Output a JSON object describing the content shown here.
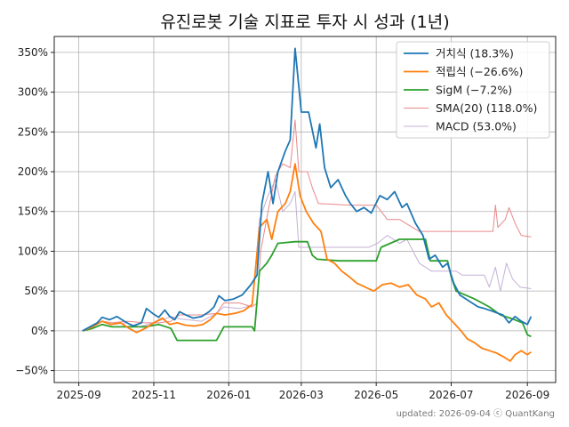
{
  "chart_data": {
    "type": "line",
    "title": "유진로봇 기술 지표로 투자 시 성과 (1년)",
    "xlabel": "",
    "ylabel": "",
    "x_ticks": [
      "2025-09",
      "2025-11",
      "2026-01",
      "2026-03",
      "2026-05",
      "2026-07",
      "2026-09"
    ],
    "y_ticks": [
      "−50%",
      "0%",
      "50%",
      "100%",
      "150%",
      "200%",
      "250%",
      "300%",
      "350%"
    ],
    "x_range": [
      "2025-08-12",
      "2026-09-24"
    ],
    "ylim": [
      -65,
      370
    ],
    "grid": true,
    "legend_position": "top-right",
    "footer": "updated: 2026-09-04 ⓒ QuantKang",
    "series": [
      {
        "name": "거치식 (18.3%)",
        "color": "#1f77b4",
        "points": [
          [
            "2025-09-04",
            0
          ],
          [
            "2025-09-10",
            5
          ],
          [
            "2025-09-16",
            10
          ],
          [
            "2025-09-20",
            17
          ],
          [
            "2025-09-26",
            14
          ],
          [
            "2025-10-02",
            18
          ],
          [
            "2025-10-08",
            12
          ],
          [
            "2025-10-15",
            6
          ],
          [
            "2025-10-22",
            10
          ],
          [
            "2025-10-26",
            28
          ],
          [
            "2025-10-31",
            22
          ],
          [
            "2025-11-05",
            17
          ],
          [
            "2025-11-10",
            26
          ],
          [
            "2025-11-14",
            18
          ],
          [
            "2025-11-18",
            14
          ],
          [
            "2025-11-22",
            24
          ],
          [
            "2025-11-27",
            20
          ],
          [
            "2025-12-03",
            16
          ],
          [
            "2025-12-10",
            18
          ],
          [
            "2025-12-16",
            24
          ],
          [
            "2025-12-20",
            30
          ],
          [
            "2025-12-24",
            44
          ],
          [
            "2025-12-29",
            38
          ],
          [
            "2026-01-05",
            40
          ],
          [
            "2026-01-12",
            45
          ],
          [
            "2026-01-19",
            58
          ],
          [
            "2026-01-24",
            70
          ],
          [
            "2026-01-28",
            160
          ],
          [
            "2026-02-02",
            200
          ],
          [
            "2026-02-06",
            160
          ],
          [
            "2026-02-10",
            200
          ],
          [
            "2026-02-16",
            226
          ],
          [
            "2026-02-20",
            240
          ],
          [
            "2026-02-24",
            355
          ],
          [
            "2026-03-01",
            275
          ],
          [
            "2026-03-07",
            275
          ],
          [
            "2026-03-13",
            230
          ],
          [
            "2026-03-16",
            260
          ],
          [
            "2026-03-20",
            205
          ],
          [
            "2026-03-25",
            180
          ],
          [
            "2026-03-31",
            190
          ],
          [
            "2026-04-06",
            170
          ],
          [
            "2026-04-10",
            160
          ],
          [
            "2026-04-15",
            150
          ],
          [
            "2026-04-21",
            155
          ],
          [
            "2026-04-27",
            148
          ],
          [
            "2026-05-04",
            170
          ],
          [
            "2026-05-10",
            165
          ],
          [
            "2026-05-16",
            175
          ],
          [
            "2026-05-22",
            155
          ],
          [
            "2026-05-26",
            160
          ],
          [
            "2026-06-02",
            135
          ],
          [
            "2026-06-08",
            120
          ],
          [
            "2026-06-13",
            90
          ],
          [
            "2026-06-18",
            95
          ],
          [
            "2026-06-24",
            80
          ],
          [
            "2026-06-28",
            85
          ],
          [
            "2026-07-03",
            60
          ],
          [
            "2026-07-08",
            45
          ],
          [
            "2026-07-13",
            40
          ],
          [
            "2026-07-18",
            35
          ],
          [
            "2026-07-23",
            30
          ],
          [
            "2026-07-28",
            28
          ],
          [
            "2026-08-03",
            25
          ],
          [
            "2026-08-08",
            22
          ],
          [
            "2026-08-12",
            20
          ],
          [
            "2026-08-17",
            10
          ],
          [
            "2026-08-22",
            18
          ],
          [
            "2026-08-27",
            12
          ],
          [
            "2026-09-01",
            8
          ],
          [
            "2026-09-04",
            18
          ]
        ]
      },
      {
        "name": "적립식 (−26.6%)",
        "color": "#ff7f0e",
        "points": [
          [
            "2025-09-04",
            0
          ],
          [
            "2025-09-12",
            5
          ],
          [
            "2025-09-20",
            12
          ],
          [
            "2025-09-27",
            8
          ],
          [
            "2025-10-05",
            10
          ],
          [
            "2025-10-12",
            3
          ],
          [
            "2025-10-18",
            -2
          ],
          [
            "2025-10-25",
            3
          ],
          [
            "2025-11-01",
            10
          ],
          [
            "2025-11-08",
            16
          ],
          [
            "2025-11-14",
            8
          ],
          [
            "2025-11-20",
            10
          ],
          [
            "2025-11-27",
            7
          ],
          [
            "2025-12-04",
            6
          ],
          [
            "2025-12-11",
            8
          ],
          [
            "2025-12-17",
            14
          ],
          [
            "2025-12-22",
            22
          ],
          [
            "2025-12-29",
            20
          ],
          [
            "2026-01-06",
            22
          ],
          [
            "2026-01-13",
            25
          ],
          [
            "2026-01-20",
            33
          ],
          [
            "2026-01-26",
            130
          ],
          [
            "2026-02-01",
            140
          ],
          [
            "2026-02-05",
            115
          ],
          [
            "2026-02-10",
            150
          ],
          [
            "2026-02-16",
            160
          ],
          [
            "2026-02-20",
            175
          ],
          [
            "2026-02-24",
            210
          ],
          [
            "2026-02-28",
            170
          ],
          [
            "2026-03-05",
            150
          ],
          [
            "2026-03-11",
            135
          ],
          [
            "2026-03-17",
            125
          ],
          [
            "2026-03-22",
            90
          ],
          [
            "2026-03-28",
            85
          ],
          [
            "2026-04-03",
            75
          ],
          [
            "2026-04-09",
            68
          ],
          [
            "2026-04-15",
            60
          ],
          [
            "2026-04-22",
            55
          ],
          [
            "2026-04-29",
            50
          ],
          [
            "2026-05-06",
            58
          ],
          [
            "2026-05-13",
            60
          ],
          [
            "2026-05-20",
            55
          ],
          [
            "2026-05-27",
            58
          ],
          [
            "2026-06-03",
            45
          ],
          [
            "2026-06-10",
            40
          ],
          [
            "2026-06-15",
            30
          ],
          [
            "2026-06-21",
            35
          ],
          [
            "2026-06-27",
            20
          ],
          [
            "2026-07-03",
            10
          ],
          [
            "2026-07-09",
            0
          ],
          [
            "2026-07-14",
            -10
          ],
          [
            "2026-07-20",
            -15
          ],
          [
            "2026-07-26",
            -22
          ],
          [
            "2026-08-01",
            -25
          ],
          [
            "2026-08-07",
            -28
          ],
          [
            "2026-08-13",
            -33
          ],
          [
            "2026-08-18",
            -38
          ],
          [
            "2026-08-22",
            -30
          ],
          [
            "2026-08-27",
            -25
          ],
          [
            "2026-09-01",
            -30
          ],
          [
            "2026-09-04",
            -26.6
          ]
        ]
      },
      {
        "name": "SigM (−7.2%)",
        "color": "#2ca02c",
        "points": [
          [
            "2025-09-04",
            0
          ],
          [
            "2025-09-12",
            3
          ],
          [
            "2025-09-20",
            8
          ],
          [
            "2025-09-28",
            5
          ],
          [
            "2025-10-10",
            5
          ],
          [
            "2025-10-25",
            5
          ],
          [
            "2025-11-05",
            8
          ],
          [
            "2025-11-15",
            3
          ],
          [
            "2025-11-20",
            -12
          ],
          [
            "2025-12-05",
            -12
          ],
          [
            "2025-12-22",
            -12
          ],
          [
            "2025-12-28",
            5
          ],
          [
            "2026-01-10",
            5
          ],
          [
            "2026-01-20",
            5
          ],
          [
            "2026-01-22",
            0
          ],
          [
            "2026-01-26",
            75
          ],
          [
            "2026-02-01",
            85
          ],
          [
            "2026-02-05",
            95
          ],
          [
            "2026-02-10",
            110
          ],
          [
            "2026-02-24",
            112
          ],
          [
            "2026-03-01",
            112
          ],
          [
            "2026-03-06",
            112
          ],
          [
            "2026-03-10",
            95
          ],
          [
            "2026-03-14",
            90
          ],
          [
            "2026-04-01",
            88
          ],
          [
            "2026-04-20",
            88
          ],
          [
            "2026-05-01",
            88
          ],
          [
            "2026-05-05",
            105
          ],
          [
            "2026-05-20",
            115
          ],
          [
            "2026-06-10",
            115
          ],
          [
            "2026-06-14",
            88
          ],
          [
            "2026-06-28",
            88
          ],
          [
            "2026-07-01",
            68
          ],
          [
            "2026-07-05",
            50
          ],
          [
            "2026-07-20",
            40
          ],
          [
            "2026-08-01",
            30
          ],
          [
            "2026-08-10",
            20
          ],
          [
            "2026-08-20",
            15
          ],
          [
            "2026-08-28",
            10
          ],
          [
            "2026-09-01",
            -5
          ],
          [
            "2026-09-04",
            -7.2
          ]
        ]
      },
      {
        "name": "SMA(20)  (118.0%)",
        "color": "#e9888a",
        "points": [
          [
            "2025-09-04",
            0
          ],
          [
            "2025-09-12",
            5
          ],
          [
            "2025-09-20",
            12
          ],
          [
            "2025-09-28",
            10
          ],
          [
            "2025-10-10",
            12
          ],
          [
            "2025-10-25",
            10
          ],
          [
            "2025-11-05",
            10
          ],
          [
            "2025-11-15",
            12
          ],
          [
            "2025-11-22",
            20
          ],
          [
            "2025-12-10",
            20
          ],
          [
            "2025-12-22",
            22
          ],
          [
            "2025-12-28",
            35
          ],
          [
            "2026-01-10",
            35
          ],
          [
            "2026-01-20",
            30
          ],
          [
            "2026-01-24",
            35
          ],
          [
            "2026-01-27",
            100
          ],
          [
            "2026-02-02",
            150
          ],
          [
            "2026-02-08",
            195
          ],
          [
            "2026-02-14",
            210
          ],
          [
            "2026-02-20",
            205
          ],
          [
            "2026-02-24",
            265
          ],
          [
            "2026-02-27",
            200
          ],
          [
            "2026-03-06",
            200
          ],
          [
            "2026-03-10",
            180
          ],
          [
            "2026-03-15",
            160
          ],
          [
            "2026-04-10",
            158
          ],
          [
            "2026-04-25",
            158
          ],
          [
            "2026-05-01",
            158
          ],
          [
            "2026-05-10",
            140
          ],
          [
            "2026-05-20",
            140
          ],
          [
            "2026-05-25",
            135
          ],
          [
            "2026-06-05",
            125
          ],
          [
            "2026-07-15",
            125
          ],
          [
            "2026-08-04",
            125
          ],
          [
            "2026-08-06",
            158
          ],
          [
            "2026-08-08",
            130
          ],
          [
            "2026-08-14",
            140
          ],
          [
            "2026-08-17",
            155
          ],
          [
            "2026-08-22",
            135
          ],
          [
            "2026-08-27",
            120
          ],
          [
            "2026-09-04",
            118
          ]
        ]
      },
      {
        "name": "MACD (53.0%)",
        "color": "#c5b0d5",
        "points": [
          [
            "2025-09-04",
            0
          ],
          [
            "2025-09-12",
            5
          ],
          [
            "2025-09-20",
            12
          ],
          [
            "2025-09-28",
            8
          ],
          [
            "2025-10-10",
            10
          ],
          [
            "2025-10-20",
            5
          ],
          [
            "2025-11-01",
            10
          ],
          [
            "2025-11-15",
            18
          ],
          [
            "2025-11-22",
            15
          ],
          [
            "2025-12-10",
            12
          ],
          [
            "2025-12-22",
            22
          ],
          [
            "2025-12-28",
            30
          ],
          [
            "2026-01-10",
            28
          ],
          [
            "2026-01-20",
            32
          ],
          [
            "2026-01-26",
            140
          ],
          [
            "2026-02-02",
            170
          ],
          [
            "2026-02-08",
            190
          ],
          [
            "2026-02-14",
            150
          ],
          [
            "2026-02-20",
            160
          ],
          [
            "2026-02-24",
            175
          ],
          [
            "2026-02-27",
            105
          ],
          [
            "2026-03-10",
            105
          ],
          [
            "2026-03-25",
            105
          ],
          [
            "2026-04-10",
            105
          ],
          [
            "2026-04-25",
            105
          ],
          [
            "2026-05-02",
            110
          ],
          [
            "2026-05-10",
            120
          ],
          [
            "2026-05-20",
            110
          ],
          [
            "2026-05-26",
            115
          ],
          [
            "2026-06-05",
            85
          ],
          [
            "2026-06-15",
            75
          ],
          [
            "2026-07-01",
            75
          ],
          [
            "2026-07-05",
            75
          ],
          [
            "2026-07-10",
            70
          ],
          [
            "2026-07-28",
            70
          ],
          [
            "2026-08-01",
            55
          ],
          [
            "2026-08-06",
            80
          ],
          [
            "2026-08-10",
            50
          ],
          [
            "2026-08-15",
            85
          ],
          [
            "2026-08-20",
            65
          ],
          [
            "2026-08-26",
            55
          ],
          [
            "2026-09-04",
            53
          ]
        ]
      }
    ]
  }
}
